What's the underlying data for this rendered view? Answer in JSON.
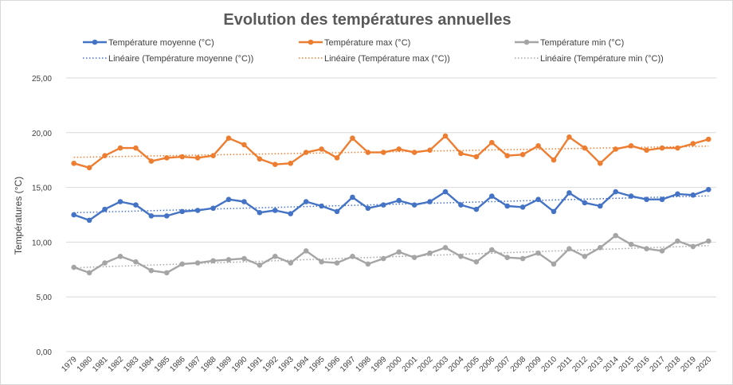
{
  "chart_data": {
    "type": "line",
    "title": "Evolution des températures annuelles",
    "ylabel": "Températures (°C)",
    "xlabel": "",
    "ylim": [
      0,
      25
    ],
    "yticks": [
      "0,00",
      "5,00",
      "10,00",
      "15,00",
      "20,00",
      "25,00"
    ],
    "grid": true,
    "legend_position": "top",
    "categories": [
      "1979",
      "1980",
      "1981",
      "1982",
      "1983",
      "1984",
      "1985",
      "1986",
      "1987",
      "1988",
      "1989",
      "1990",
      "1991",
      "1992",
      "1993",
      "1994",
      "1995",
      "1996",
      "1997",
      "1998",
      "1999",
      "2000",
      "2001",
      "2002",
      "2003",
      "2004",
      "2005",
      "2006",
      "2007",
      "2008",
      "2009",
      "2010",
      "2011",
      "2012",
      "2013",
      "2014",
      "2015",
      "2016",
      "2017",
      "2018",
      "2019",
      "2020"
    ],
    "series": [
      {
        "name": "Température moyenne (°C)",
        "color": "#4472c4",
        "values": [
          12.5,
          12.0,
          13.0,
          13.7,
          13.4,
          12.4,
          12.4,
          12.8,
          12.9,
          13.1,
          13.9,
          13.7,
          12.7,
          12.9,
          12.6,
          13.7,
          13.3,
          12.8,
          14.1,
          13.1,
          13.4,
          13.8,
          13.4,
          13.7,
          14.6,
          13.4,
          13.0,
          14.2,
          13.3,
          13.2,
          13.9,
          12.8,
          14.5,
          13.6,
          13.3,
          14.6,
          14.2,
          13.9,
          13.9,
          14.4,
          14.3,
          14.8
        ]
      },
      {
        "name": "Température max (°C)",
        "color": "#ed7d31",
        "values": [
          17.2,
          16.8,
          17.9,
          18.6,
          18.6,
          17.4,
          17.7,
          17.8,
          17.7,
          17.9,
          19.5,
          18.9,
          17.6,
          17.1,
          17.2,
          18.2,
          18.5,
          17.7,
          19.5,
          18.2,
          18.2,
          18.5,
          18.2,
          18.4,
          19.7,
          18.1,
          17.8,
          19.1,
          17.9,
          18.0,
          18.8,
          17.5,
          19.6,
          18.6,
          17.2,
          18.5,
          18.8,
          18.4,
          18.6,
          18.6,
          19.0,
          19.4
        ]
      },
      {
        "name": "Température min (°C)",
        "color": "#a5a5a5",
        "values": [
          7.7,
          7.2,
          8.1,
          8.7,
          8.2,
          7.4,
          7.2,
          8.0,
          8.1,
          8.3,
          8.4,
          8.5,
          7.9,
          8.7,
          8.1,
          9.2,
          8.2,
          8.1,
          8.7,
          8.0,
          8.5,
          9.1,
          8.6,
          9.0,
          9.5,
          8.7,
          8.2,
          9.3,
          8.6,
          8.5,
          9.0,
          8.0,
          9.4,
          8.7,
          9.5,
          10.6,
          9.8,
          9.4,
          9.2,
          10.1,
          9.6,
          10.1
        ]
      }
    ],
    "trendlines": [
      {
        "name": "Linéaire (Température moyenne (°C))",
        "color": "#4472c4"
      },
      {
        "name": "Linéaire (Température max (°C))",
        "color": "#ed7d31"
      },
      {
        "name": "Linéaire (Température min (°C))",
        "color": "#a5a5a5"
      }
    ]
  }
}
